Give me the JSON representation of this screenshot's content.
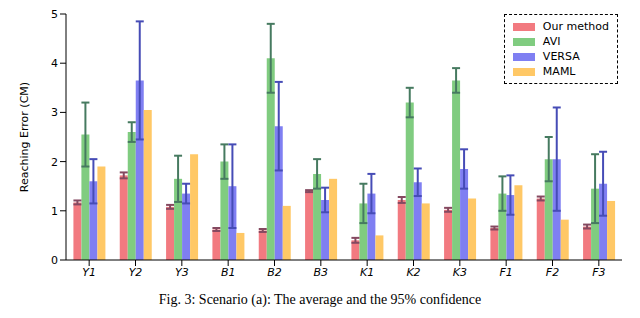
{
  "chart_data": {
    "type": "bar",
    "caption": "Fig. 3: Scenario (a): The average and the 95% confidence",
    "y_label": "Reaching Error (CM)",
    "categories": [
      "Y1",
      "Y2",
      "Y3",
      "B1",
      "B2",
      "B3",
      "K1",
      "K2",
      "K3",
      "F1",
      "F2",
      "F3"
    ],
    "series": [
      {
        "name": "Our method",
        "color": "#f27a80",
        "values": [
          1.17,
          1.72,
          1.08,
          0.62,
          0.6,
          1.4,
          0.4,
          1.22,
          1.02,
          0.65,
          1.25,
          0.68
        ],
        "errors": [
          0.04,
          0.06,
          0.04,
          0.03,
          0.03,
          0.02,
          0.05,
          0.06,
          0.04,
          0.03,
          0.04,
          0.04
        ]
      },
      {
        "name": "AVI",
        "color": "#80cc80",
        "values": [
          2.55,
          2.6,
          1.65,
          2.0,
          4.1,
          1.75,
          1.15,
          3.2,
          3.65,
          1.35,
          2.05,
          1.45
        ],
        "errors": [
          0.65,
          0.2,
          0.47,
          0.35,
          0.7,
          0.3,
          0.4,
          0.3,
          0.25,
          0.35,
          0.45,
          0.7
        ]
      },
      {
        "name": "VERSA",
        "color": "#7f7ff2",
        "values": [
          1.6,
          3.65,
          1.35,
          1.5,
          2.72,
          1.22,
          1.35,
          1.58,
          1.85,
          1.32,
          2.05,
          1.55
        ],
        "errors": [
          0.45,
          1.2,
          0.2,
          0.85,
          0.9,
          0.25,
          0.4,
          0.28,
          0.4,
          0.4,
          1.05,
          0.65
        ]
      },
      {
        "name": "MAML",
        "color": "#ffc866",
        "values": [
          1.9,
          3.05,
          2.15,
          0.55,
          1.1,
          1.65,
          0.5,
          1.15,
          1.25,
          1.52,
          0.82,
          1.2
        ]
      }
    ],
    "ylim": [
      0,
      5
    ],
    "yticks": [
      0,
      1,
      2,
      3,
      4,
      5
    ],
    "grid": false,
    "legend": "upper right"
  }
}
